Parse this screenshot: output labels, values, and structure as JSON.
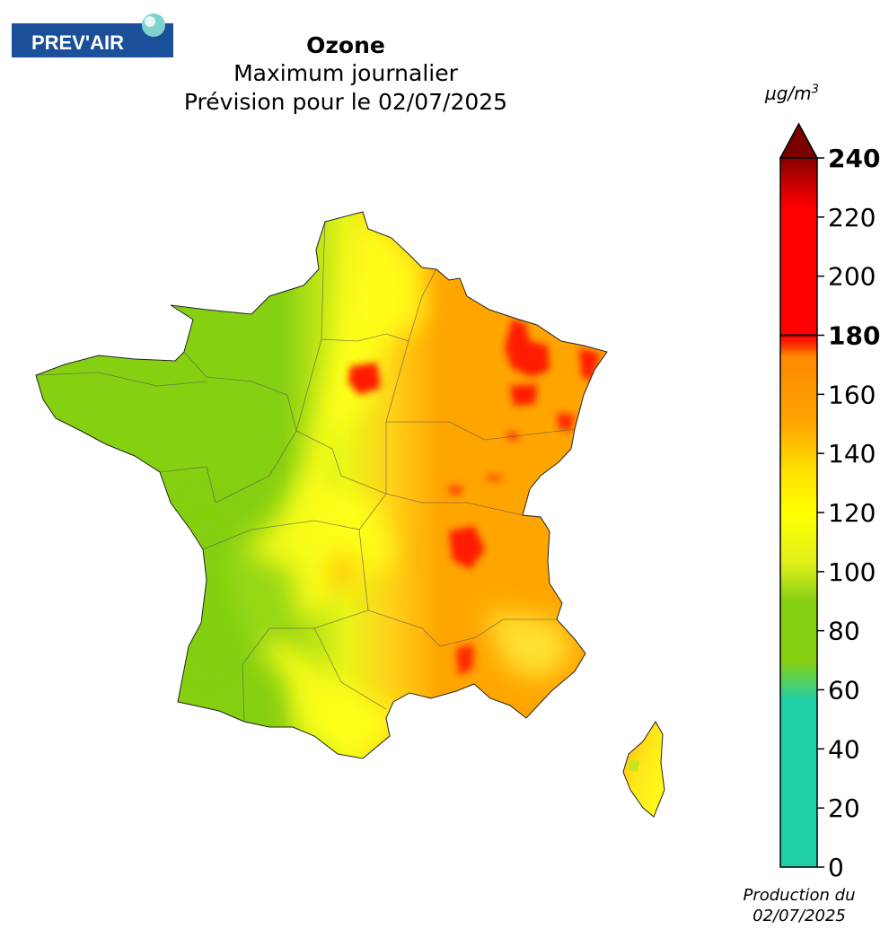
{
  "logo": {
    "text": "PREV'AIR"
  },
  "header": {
    "pollutant": "Ozone",
    "statistic": "Maximum journalier",
    "forecast": "Prévision pour le 02/07/2025"
  },
  "legend": {
    "unit": "µg/m",
    "unit_exp": "3",
    "ticks": [
      {
        "value": 0,
        "label": "0",
        "bold": false
      },
      {
        "value": 20,
        "label": "20",
        "bold": false
      },
      {
        "value": 40,
        "label": "40",
        "bold": false
      },
      {
        "value": 60,
        "label": "60",
        "bold": false
      },
      {
        "value": 80,
        "label": "80",
        "bold": false
      },
      {
        "value": 100,
        "label": "100",
        "bold": false
      },
      {
        "value": 120,
        "label": "120",
        "bold": false
      },
      {
        "value": 140,
        "label": "140",
        "bold": false
      },
      {
        "value": 160,
        "label": "160",
        "bold": false
      },
      {
        "value": 180,
        "label": "180",
        "bold": true
      },
      {
        "value": 200,
        "label": "200",
        "bold": false
      },
      {
        "value": 220,
        "label": "220",
        "bold": false
      },
      {
        "value": 240,
        "label": "240",
        "bold": true
      }
    ],
    "threshold": 180,
    "range": [
      0,
      240
    ],
    "colors": {
      "teal": "#1fcfa8",
      "green": "#86d012",
      "yellow": "#ffff00",
      "orange": "#ffa500",
      "red": "#ff1a00",
      "darkred": "#7a0000"
    }
  },
  "footer": {
    "line1": "Production du",
    "line2": "02/07/2025"
  }
}
